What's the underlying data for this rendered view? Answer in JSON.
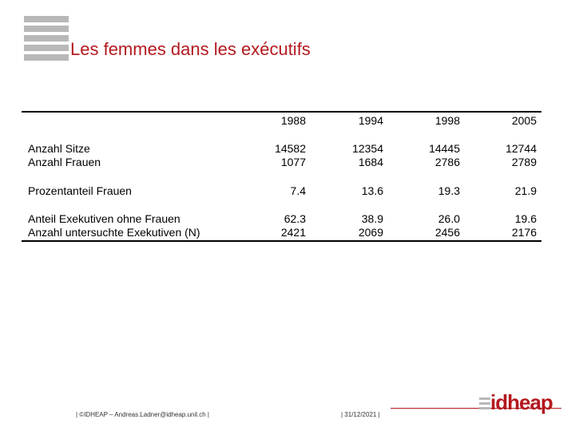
{
  "slide": {
    "title": "Les femmes dans les exécutifs"
  },
  "table": {
    "years": [
      "1988",
      "1994",
      "1998",
      "2005"
    ],
    "rows": [
      {
        "label": "Anzahl Sitze",
        "values": [
          "14582",
          "12354",
          "14445",
          "12744"
        ]
      },
      {
        "label": "Anzahl Frauen",
        "values": [
          "1077",
          "1684",
          "2786",
          "2789"
        ]
      },
      {
        "label": "Prozentanteil Frauen",
        "values": [
          "7.4",
          "13.6",
          "19.3",
          "21.9"
        ]
      },
      {
        "label": "Anteil Exekutiven ohne Frauen",
        "values": [
          "62.3",
          "38.9",
          "26.0",
          "19.6"
        ]
      },
      {
        "label": "Anzahl untersuchte Exekutiven (N)",
        "values": [
          "2421",
          "2069",
          "2456",
          "2176"
        ]
      }
    ]
  },
  "footer": {
    "left": "| ©IDHEAP – Andreas.Ladner@idheap.unil.ch |",
    "date": "| 31/12/2021 |",
    "logo": "idheap"
  },
  "colors": {
    "accent": "#b3191f",
    "bars": "#b8b8b8"
  }
}
